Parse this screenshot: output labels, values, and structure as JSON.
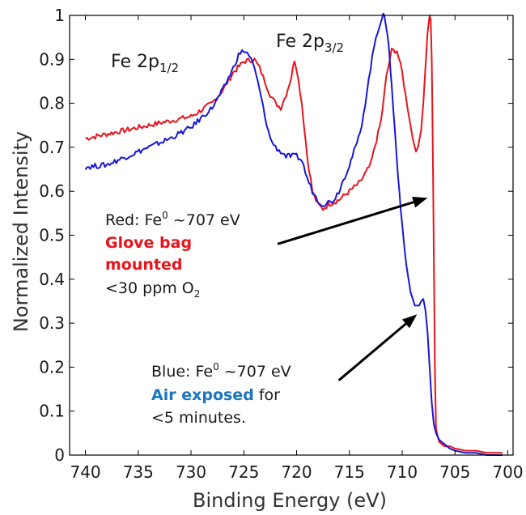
{
  "chart_data": {
    "type": "line",
    "xlabel": "Binding Energy (eV)",
    "ylabel": "Normalized Intensity",
    "xlim": [
      741.5,
      699.5
    ],
    "ylim": [
      0,
      1
    ],
    "x_reversed": true,
    "xticks": [
      740,
      735,
      730,
      725,
      720,
      715,
      710,
      705,
      700
    ],
    "yticks": [
      0,
      0.1,
      0.2,
      0.3,
      0.4,
      0.5,
      0.6,
      0.7,
      0.8,
      0.9,
      1
    ],
    "ytick_labels": [
      "0",
      "0.1",
      "0.2",
      "0.3",
      "0.4",
      "0.5",
      "0.6",
      "0.7",
      "0.8",
      "0.9",
      "1"
    ],
    "grid": false,
    "series": [
      {
        "color": "#e8141c",
        "x": [
          740,
          738,
          736,
          734,
          732,
          730,
          728,
          727,
          726,
          725,
          724,
          723.5,
          723,
          722.5,
          722,
          721.5,
          721,
          720.5,
          720.2,
          720,
          719.5,
          719,
          718.5,
          718,
          717.5,
          717,
          716,
          715,
          714,
          713,
          712,
          711.5,
          711,
          710.5,
          710,
          709.5,
          709,
          708.7,
          708.5,
          708.2,
          708,
          707.8,
          707.6,
          707.4,
          707.3,
          707.2,
          707.1,
          707.0,
          706.9,
          706.8,
          706.5,
          706,
          705.5,
          705,
          704,
          703,
          702,
          701,
          700.5
        ],
        "y": [
          0.72,
          0.73,
          0.74,
          0.75,
          0.76,
          0.77,
          0.8,
          0.83,
          0.87,
          0.895,
          0.9,
          0.88,
          0.85,
          0.82,
          0.8,
          0.79,
          0.82,
          0.86,
          0.9,
          0.88,
          0.8,
          0.68,
          0.6,
          0.57,
          0.56,
          0.57,
          0.58,
          0.6,
          0.62,
          0.66,
          0.76,
          0.86,
          0.92,
          0.92,
          0.87,
          0.79,
          0.72,
          0.69,
          0.7,
          0.74,
          0.8,
          0.88,
          0.96,
          1.0,
          0.99,
          0.9,
          0.7,
          0.45,
          0.2,
          0.06,
          0.03,
          0.02,
          0.02,
          0.015,
          0.01,
          0.01,
          0.005,
          0.005,
          0.005
        ]
      },
      {
        "color": "#1717d6",
        "x": [
          740,
          738,
          736,
          734,
          732,
          730,
          728,
          727,
          726,
          725.5,
          725,
          724.5,
          724,
          723.5,
          723,
          722.5,
          722,
          721.5,
          721,
          720,
          719.5,
          719,
          718.5,
          718,
          717.5,
          717,
          716.5,
          716,
          715,
          714,
          713.5,
          713,
          712.5,
          712,
          711.8,
          711.6,
          711.4,
          711.2,
          711,
          710.7,
          710.4,
          710,
          709.6,
          709.2,
          708.8,
          708.4,
          708.2,
          708,
          707.8,
          707.6,
          707.4,
          707.2,
          707,
          706.8,
          706.5,
          706,
          705.5,
          705,
          704,
          703,
          702,
          701,
          700.5
        ],
        "y": [
          0.655,
          0.66,
          0.68,
          0.7,
          0.72,
          0.745,
          0.79,
          0.83,
          0.88,
          0.91,
          0.92,
          0.91,
          0.88,
          0.83,
          0.77,
          0.72,
          0.7,
          0.69,
          0.68,
          0.68,
          0.67,
          0.63,
          0.6,
          0.58,
          0.57,
          0.575,
          0.58,
          0.6,
          0.66,
          0.73,
          0.8,
          0.88,
          0.95,
          0.99,
          1.0,
          0.99,
          0.96,
          0.91,
          0.84,
          0.74,
          0.64,
          0.52,
          0.43,
          0.37,
          0.34,
          0.34,
          0.35,
          0.355,
          0.33,
          0.28,
          0.2,
          0.12,
          0.07,
          0.05,
          0.035,
          0.025,
          0.015,
          0.01,
          0.005,
          0.005,
          0.0,
          0.0,
          0.0
        ]
      }
    ],
    "annotations": {
      "peak_half": {
        "prefix": "Fe 2p",
        "sub": "1/2"
      },
      "peak_three_half": {
        "prefix": "Fe 2p",
        "sub": "3/2"
      },
      "red_note": {
        "line1_prefix": "Red: Fe",
        "line1_sup": "0",
        "line1_suffix": " ~707 eV",
        "bold1": "Glove bag",
        "bold2": "mounted",
        "line4_prefix": "<30 ppm O",
        "line4_sub": "2"
      },
      "blue_note": {
        "line1_prefix": "Blue: Fe",
        "line1_sup": "0",
        "line1_suffix": " ~707 eV",
        "bold": "Air exposed",
        "bold_suffix": " for",
        "line3": "<5 minutes."
      },
      "arrow_red": {
        "from": [
          721.8,
          0.48
        ],
        "to": [
          707.6,
          0.585
        ]
      },
      "arrow_blue": {
        "from": [
          716.0,
          0.17
        ],
        "to": [
          708.6,
          0.32
        ]
      }
    },
    "colors": {
      "red": "#e8141c",
      "blue": "#1717d6",
      "blue_text": "#1b75bc",
      "axis": "#000000"
    }
  }
}
